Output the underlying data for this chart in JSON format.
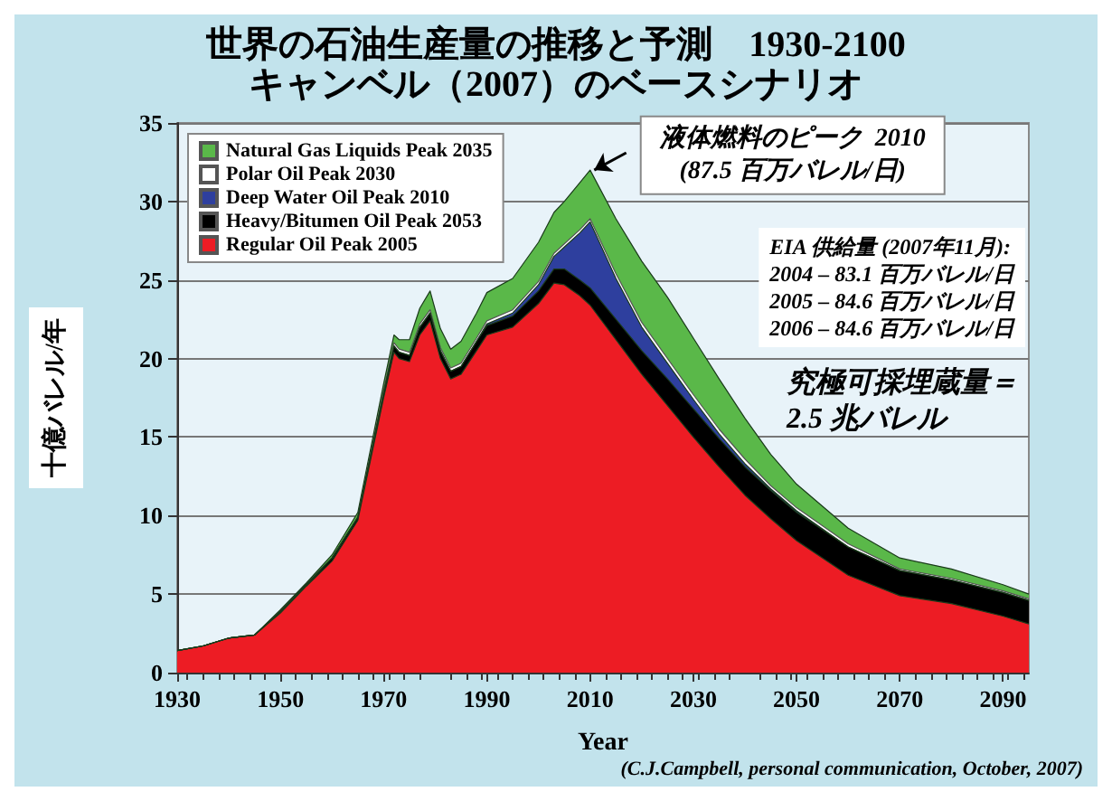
{
  "chart_data": {
    "type": "area",
    "stacked": true,
    "title": "世界の石油生産量の推移と予測　1930-2100",
    "subtitle": "キャンベル（2007）のベースシナリオ",
    "xlabel": "Year",
    "ylabel": "十億バレル/年",
    "x": [
      1930,
      1935,
      1940,
      1945,
      1950,
      1955,
      1960,
      1965,
      1970,
      1972,
      1973,
      1975,
      1977,
      1979,
      1981,
      1983,
      1985,
      1988,
      1990,
      1995,
      2000,
      2003,
      2005,
      2008,
      2010,
      2015,
      2020,
      2025,
      2030,
      2035,
      2040,
      2045,
      2050,
      2060,
      2070,
      2080,
      2090,
      2095
    ],
    "series": [
      {
        "name": "Regular Oil Peak 2005",
        "color": "#ed1c24",
        "values": [
          1.4,
          1.7,
          2.2,
          2.4,
          3.8,
          5.5,
          7.1,
          9.7,
          17.5,
          20.4,
          20.0,
          19.8,
          21.5,
          22.4,
          20.0,
          18.7,
          19.0,
          20.5,
          21.5,
          22.0,
          23.5,
          24.8,
          24.7,
          24.0,
          23.4,
          21.2,
          19.0,
          17.0,
          15.0,
          13.1,
          11.3,
          9.8,
          8.4,
          6.2,
          4.9,
          4.4,
          3.6,
          3.1
        ]
      },
      {
        "name": "Heavy/Bitumen Oil Peak 2053",
        "color": "#000000",
        "values": [
          0,
          0,
          0,
          0,
          0.1,
          0.1,
          0.2,
          0.2,
          0.3,
          0.4,
          0.4,
          0.4,
          0.5,
          0.5,
          0.5,
          0.5,
          0.5,
          0.6,
          0.6,
          0.7,
          0.8,
          0.9,
          1.0,
          1.0,
          1.1,
          1.3,
          1.5,
          1.7,
          1.8,
          1.8,
          1.8,
          1.8,
          1.8,
          1.8,
          1.6,
          1.5,
          1.5,
          1.5
        ]
      },
      {
        "name": "Deep Water Oil Peak 2010",
        "color": "#2e3f9e",
        "values": [
          0,
          0,
          0,
          0,
          0,
          0,
          0,
          0,
          0,
          0,
          0,
          0,
          0,
          0,
          0,
          0,
          0,
          0,
          0.1,
          0.2,
          0.4,
          0.8,
          1.4,
          3.0,
          4.2,
          2.6,
          1.5,
          1.0,
          0.6,
          0.3,
          0.2,
          0.1,
          0.1,
          0,
          0,
          0,
          0,
          0
        ]
      },
      {
        "name": "Polar Oil Peak 2030",
        "color": "#ffffff",
        "values": [
          0,
          0,
          0,
          0,
          0,
          0,
          0,
          0,
          0.2,
          0.2,
          0.2,
          0.2,
          0.2,
          0.2,
          0.2,
          0.2,
          0.2,
          0.2,
          0.2,
          0.2,
          0.2,
          0.2,
          0.2,
          0.2,
          0.2,
          0.3,
          0.3,
          0.3,
          0.3,
          0.3,
          0.3,
          0.2,
          0.2,
          0.2,
          0.1,
          0.1,
          0.1,
          0.1
        ]
      },
      {
        "name": "Natural Gas Liquids Peak 2035",
        "color": "#5ab849",
        "values": [
          0,
          0,
          0,
          0,
          0.1,
          0.1,
          0.2,
          0.3,
          0.4,
          0.5,
          0.6,
          0.8,
          1.0,
          1.2,
          1.2,
          1.2,
          1.4,
          1.6,
          1.8,
          2.0,
          2.5,
          2.6,
          2.7,
          3.0,
          3.1,
          3.5,
          3.9,
          3.9,
          3.6,
          3.2,
          2.6,
          2.0,
          1.5,
          1.0,
          0.7,
          0.6,
          0.4,
          0.3
        ]
      }
    ],
    "xlim": [
      1930,
      2095
    ],
    "xticks": [
      1930,
      1950,
      1970,
      1990,
      2010,
      2030,
      2050,
      2070,
      2090
    ],
    "ylim": [
      0,
      35
    ],
    "yticks": [
      0,
      5,
      10,
      15,
      20,
      25,
      30,
      35
    ],
    "grid": "y",
    "legend": "top left",
    "marker": "none",
    "annotations": [
      {
        "text": "液体燃料のピーク  2010\n(87.5 百万バレル/日)",
        "x": 2010,
        "y": 31.9
      },
      "EIA 供給量 (2007年11月):\n2004 – 83.1 百万バレル/日\n2005 – 84.6 百万バレル/日\n2006 – 84.6 百万バレル/日",
      "究極可採埋蔵量＝\n2.5 兆バレル",
      "(C.J.Campbell, personal communication, October, 2007)"
    ]
  }
}
